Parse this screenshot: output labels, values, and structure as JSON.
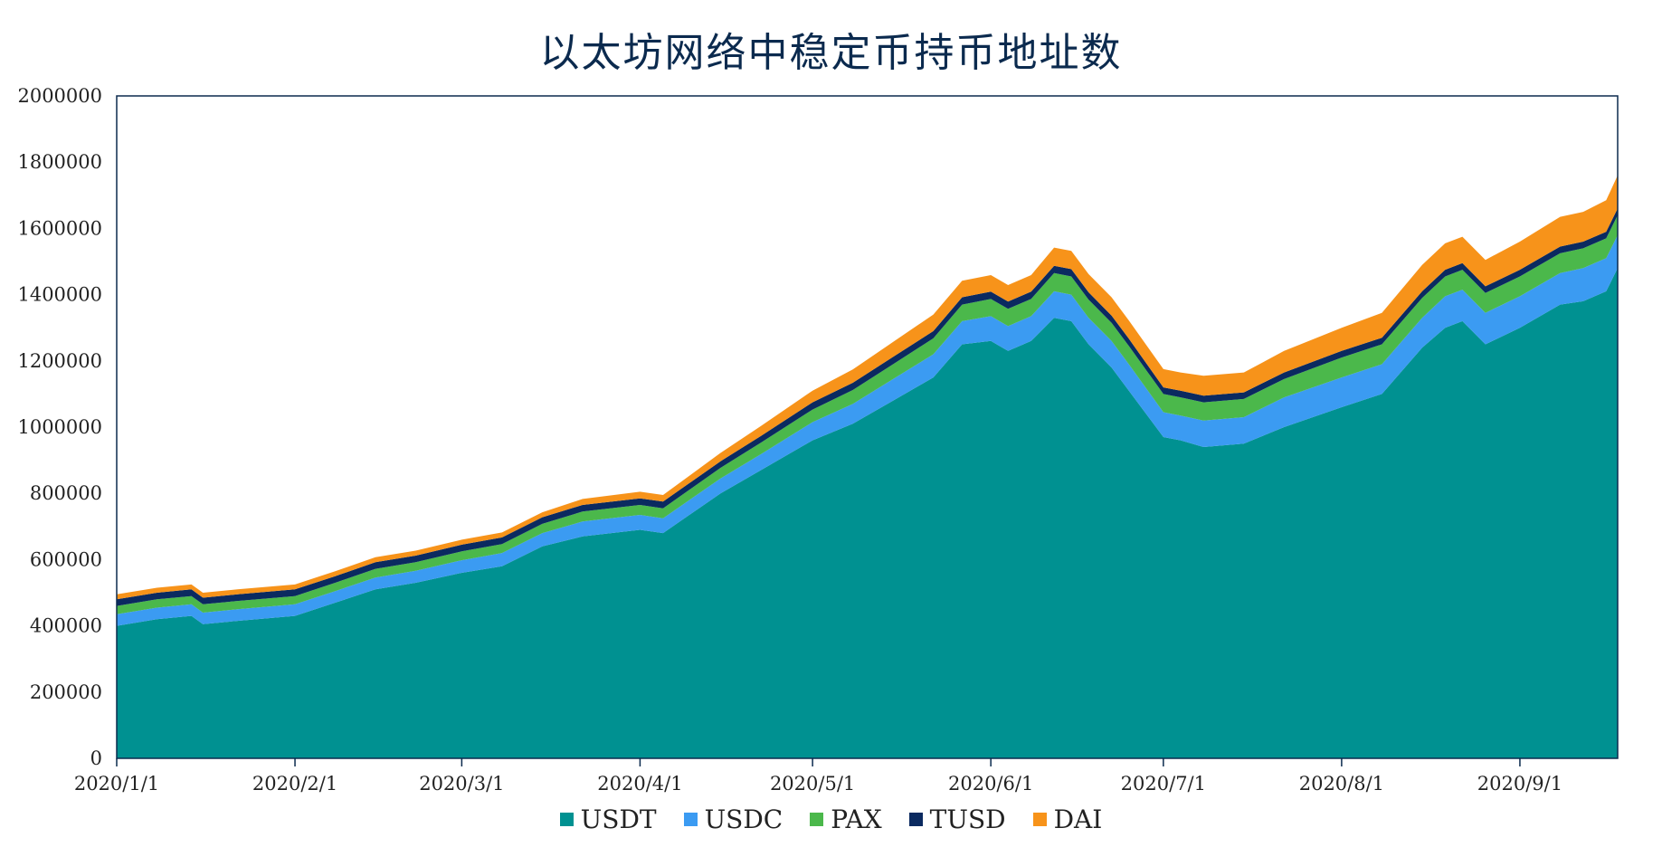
{
  "chart_data": {
    "type": "area",
    "stacked": true,
    "title": "以太坊网络中稳定币持币地址数",
    "xlabel": "",
    "ylabel": "",
    "ylim": [
      0,
      2000000
    ],
    "y_ticks": [
      "0",
      "200000",
      "400000",
      "600000",
      "800000",
      "1000000",
      "1200000",
      "1400000",
      "1600000",
      "1800000",
      "2000000"
    ],
    "x_ticks": [
      {
        "label": "2020/1/1",
        "date": "2020-01-01"
      },
      {
        "label": "2020/2/1",
        "date": "2020-02-01"
      },
      {
        "label": "2020/3/1",
        "date": "2020-03-01"
      },
      {
        "label": "2020/4/1",
        "date": "2020-04-01"
      },
      {
        "label": "2020/5/1",
        "date": "2020-05-01"
      },
      {
        "label": "2020/6/1",
        "date": "2020-06-01"
      },
      {
        "label": "2020/7/1",
        "date": "2020-07-01"
      },
      {
        "label": "2020/8/1",
        "date": "2020-08-01"
      },
      {
        "label": "2020/9/1",
        "date": "2020-09-01"
      }
    ],
    "x": [
      "2020-01-01",
      "2020-01-08",
      "2020-01-14",
      "2020-01-16",
      "2020-01-22",
      "2020-02-01",
      "2020-02-08",
      "2020-02-15",
      "2020-02-22",
      "2020-03-01",
      "2020-03-08",
      "2020-03-15",
      "2020-03-22",
      "2020-04-01",
      "2020-04-05",
      "2020-04-15",
      "2020-04-22",
      "2020-05-01",
      "2020-05-08",
      "2020-05-15",
      "2020-05-22",
      "2020-05-27",
      "2020-06-01",
      "2020-06-04",
      "2020-06-08",
      "2020-06-12",
      "2020-06-15",
      "2020-06-18",
      "2020-06-22",
      "2020-06-25",
      "2020-07-01",
      "2020-07-04",
      "2020-07-08",
      "2020-07-15",
      "2020-07-22",
      "2020-08-01",
      "2020-08-08",
      "2020-08-15",
      "2020-08-19",
      "2020-08-22",
      "2020-08-26",
      "2020-09-01",
      "2020-09-08",
      "2020-09-12",
      "2020-09-16",
      "2020-09-18"
    ],
    "grid": false,
    "legend_position": "bottom",
    "series": [
      {
        "name": "USDT",
        "color": "#009191",
        "values": [
          400000,
          420000,
          430000,
          405000,
          415000,
          430000,
          470000,
          510000,
          530000,
          560000,
          580000,
          640000,
          670000,
          690000,
          680000,
          800000,
          870000,
          960000,
          1010000,
          1080000,
          1150000,
          1250000,
          1260000,
          1230000,
          1260000,
          1330000,
          1320000,
          1250000,
          1180000,
          1110000,
          970000,
          960000,
          940000,
          950000,
          1000000,
          1060000,
          1100000,
          1240000,
          1300000,
          1320000,
          1250000,
          1300000,
          1370000,
          1380000,
          1410000,
          1480000
        ]
      },
      {
        "name": "USDC",
        "color": "#3b9bf2",
        "values": [
          35000,
          35000,
          35000,
          35000,
          35000,
          35000,
          35000,
          36000,
          36000,
          38000,
          40000,
          40000,
          45000,
          45000,
          45000,
          45000,
          48000,
          55000,
          60000,
          65000,
          70000,
          70000,
          75000,
          75000,
          75000,
          80000,
          80000,
          80000,
          80000,
          80000,
          75000,
          75000,
          80000,
          80000,
          90000,
          90000,
          90000,
          90000,
          95000,
          95000,
          95000,
          95000,
          95000,
          100000,
          100000,
          100000
        ]
      },
      {
        "name": "PAX",
        "color": "#4bb84b",
        "values": [
          25000,
          25000,
          25000,
          25000,
          25000,
          25000,
          25000,
          26000,
          26000,
          27000,
          27000,
          28000,
          30000,
          30000,
          30000,
          32000,
          35000,
          38000,
          42000,
          45000,
          48000,
          50000,
          52000,
          52000,
          52000,
          55000,
          55000,
          55000,
          55000,
          55000,
          55000,
          55000,
          55000,
          55000,
          55000,
          60000,
          60000,
          60000,
          60000,
          60000,
          60000,
          60000,
          60000,
          60000,
          60000,
          60000
        ]
      },
      {
        "name": "TUSD",
        "color": "#0b2a60",
        "values": [
          20000,
          20000,
          20000,
          20000,
          20000,
          20000,
          20000,
          20000,
          20000,
          20000,
          20000,
          20000,
          20000,
          20000,
          20000,
          20000,
          20000,
          22000,
          22000,
          22000,
          22000,
          22000,
          22000,
          22000,
          22000,
          22000,
          22000,
          22000,
          22000,
          22000,
          20000,
          20000,
          20000,
          20000,
          20000,
          20000,
          20000,
          20000,
          20000,
          20000,
          20000,
          20000,
          20000,
          20000,
          20000,
          20000
        ]
      },
      {
        "name": "DAI",
        "color": "#f7931a",
        "values": [
          15000,
          15000,
          15000,
          15000,
          15000,
          15000,
          15000,
          15000,
          15000,
          15000,
          15000,
          15000,
          18000,
          20000,
          20000,
          25000,
          30000,
          35000,
          40000,
          45000,
          50000,
          50000,
          50000,
          50000,
          50000,
          55000,
          55000,
          55000,
          55000,
          55000,
          55000,
          55000,
          60000,
          60000,
          65000,
          70000,
          75000,
          80000,
          80000,
          80000,
          80000,
          85000,
          90000,
          90000,
          95000,
          100000
        ]
      }
    ]
  }
}
